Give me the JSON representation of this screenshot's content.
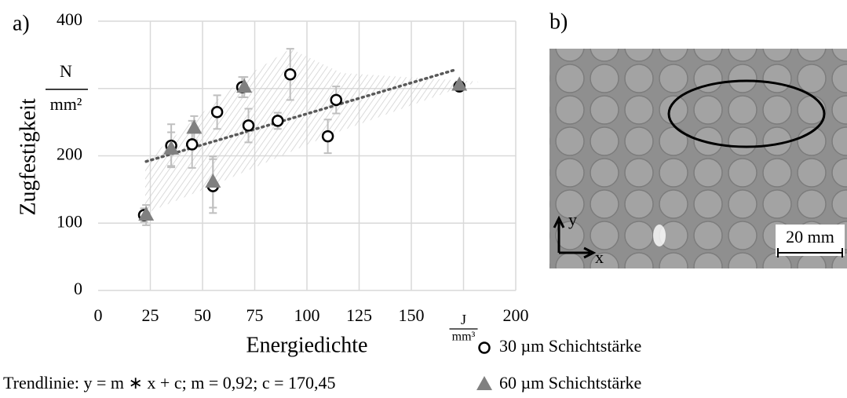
{
  "chart_data": {
    "type": "scatter",
    "panel_label": "a)",
    "xlabel": "Energiedichte",
    "ylabel": "Zugfestigkeit",
    "xlim": [
      0,
      200
    ],
    "ylim": [
      0,
      400
    ],
    "xticks": [
      0,
      25,
      50,
      75,
      100,
      125,
      150,
      {
        "value": 175,
        "label": [
          "J",
          "mm³"
        ]
      },
      200
    ],
    "yticks": [
      0,
      100,
      200,
      {
        "value": 300,
        "label": [
          "N",
          "mm²"
        ]
      },
      400
    ],
    "grid": true,
    "series": [
      {
        "name": "30 µm Schichtstärke",
        "marker": "circle",
        "color": "#ffffff",
        "x": [
          22,
          35,
          45,
          55,
          57,
          69,
          72,
          86,
          92,
          110,
          114,
          173
        ],
        "values": [
          112,
          215,
          217,
          155,
          265,
          302,
          245,
          252,
          321,
          229,
          283,
          303
        ],
        "errors": [
          10,
          32,
          35,
          40,
          25,
          15,
          25,
          12,
          38,
          25,
          20,
          5
        ]
      },
      {
        "name": "60 µm Schichtstärke",
        "marker": "triangle",
        "color": "#808080",
        "x": [
          23,
          35,
          46,
          55,
          70,
          173
        ],
        "values": [
          112,
          210,
          241,
          161,
          302,
          305
        ],
        "errors": [
          15,
          25,
          18,
          38,
          15,
          5
        ]
      }
    ],
    "trendline": {
      "label": "Trendlinie: y = m ∗ x + c; m = 0,92; c = 170,45",
      "x": [
        23,
        171
      ],
      "values": [
        191.6,
        327.8
      ]
    },
    "photo": {
      "panel_label": "b)",
      "axis_y": "y",
      "axis_x": "x",
      "scale_bar": "20 mm"
    }
  }
}
